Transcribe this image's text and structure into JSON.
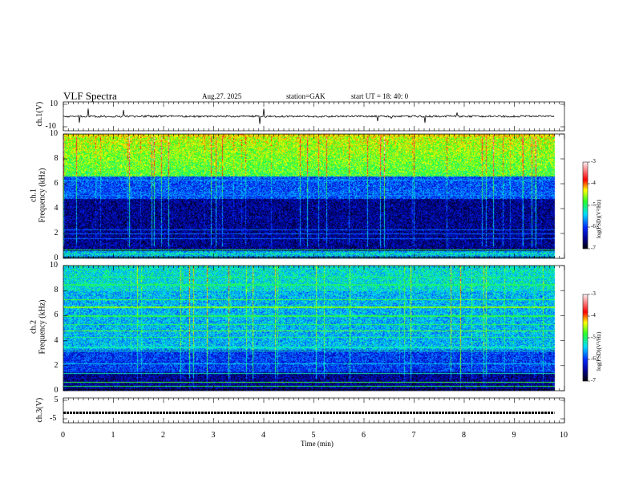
{
  "header": {
    "title": "VLF  Spectra",
    "date": "Aug.27. 2025",
    "station": "station=GAK",
    "start": "start  UT  =   18: 40: 0"
  },
  "chart_data": [
    {
      "type": "line",
      "name": "ch1-waveform",
      "ylabel": "ch.1(V)",
      "ylim": [
        -10,
        10
      ],
      "yticks": [
        "10",
        "-10"
      ],
      "xlim": [
        0,
        10
      ],
      "data_end_min": 9.8,
      "description_values": {
        "baseline": 0,
        "noise_amplitude": 1.5
      }
    },
    {
      "type": "heatmap",
      "name": "ch1-spectrogram",
      "ylabel": "ch.1\nFrequency  (kHz)",
      "ylabel_lines": [
        "ch.1",
        "Frequency  (kHz)"
      ],
      "ylim": [
        0,
        10
      ],
      "yticks": [
        "0",
        "2",
        "4",
        "6",
        "8",
        "10"
      ],
      "xlim": [
        0,
        10
      ],
      "colorbar": {
        "label": "log(PSD)(V²/Hz)",
        "range": [
          -7,
          -3
        ],
        "ticks": [
          "-3",
          "-4",
          "-5",
          "-6",
          "-7"
        ]
      }
    },
    {
      "type": "heatmap",
      "name": "ch2-spectrogram",
      "ylabel_lines": [
        "ch.2",
        "Frequency  (kHz)"
      ],
      "ylim": [
        0,
        10
      ],
      "yticks": [
        "0",
        "2",
        "4",
        "6",
        "8",
        "10"
      ],
      "xlim": [
        0,
        10
      ],
      "colorbar": {
        "label": "log(PSD)(V²/Hz)",
        "range": [
          -7,
          -3
        ],
        "ticks": [
          "-3",
          "-4",
          "-5",
          "-6",
          "-7"
        ]
      }
    },
    {
      "type": "line",
      "name": "ch3-waveform",
      "ylabel": "ch.3(V)",
      "ylim": [
        -5,
        5
      ],
      "yticks": [
        "5",
        "-5"
      ],
      "xlim": [
        0,
        10
      ],
      "values_constant": -1.2
    }
  ],
  "xaxis": {
    "label": "Time  (min)",
    "ticks": [
      "0",
      "1",
      "2",
      "3",
      "4",
      "5",
      "6",
      "7",
      "8",
      "9",
      "10"
    ]
  }
}
